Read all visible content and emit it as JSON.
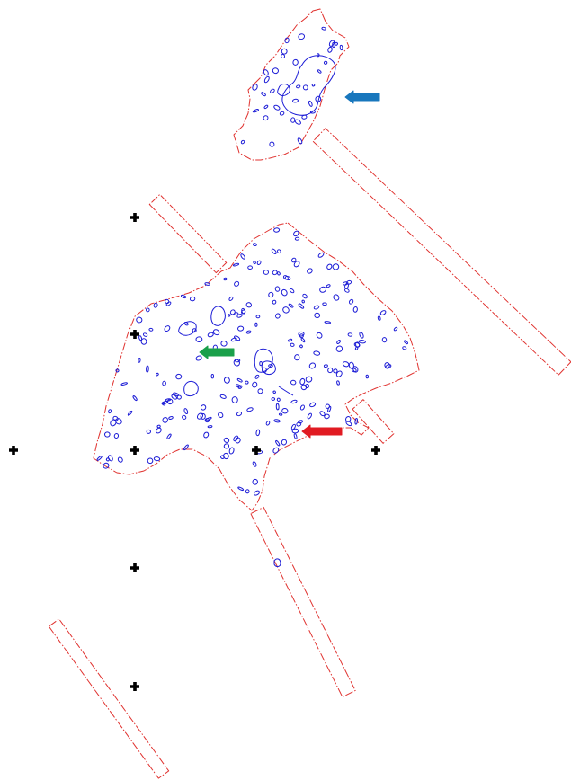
{
  "colors": {
    "background": "#ffffff",
    "boundary": "#e0322f",
    "features": "#1c1cd6",
    "grid_marker": "#000000",
    "arrow_north_site": "#1877bd",
    "arrow_central": "#1aa04a",
    "arrow_south_edge": "#e11b22"
  },
  "legend": {
    "boundary_style": "dash-dot red line",
    "feature_style": "blue outline",
    "grid_marker_icon": "black cross",
    "arrow_icon": "pointer-arrow"
  },
  "arrows": [
    {
      "id": "arrow-north-site",
      "color_key": "arrow_north_site",
      "direction": "left"
    },
    {
      "id": "arrow-central-features",
      "color_key": "arrow_central",
      "direction": "left"
    },
    {
      "id": "arrow-south-edge",
      "color_key": "arrow_south_edge",
      "direction": "left"
    }
  ],
  "grid_marker_count": 8
}
